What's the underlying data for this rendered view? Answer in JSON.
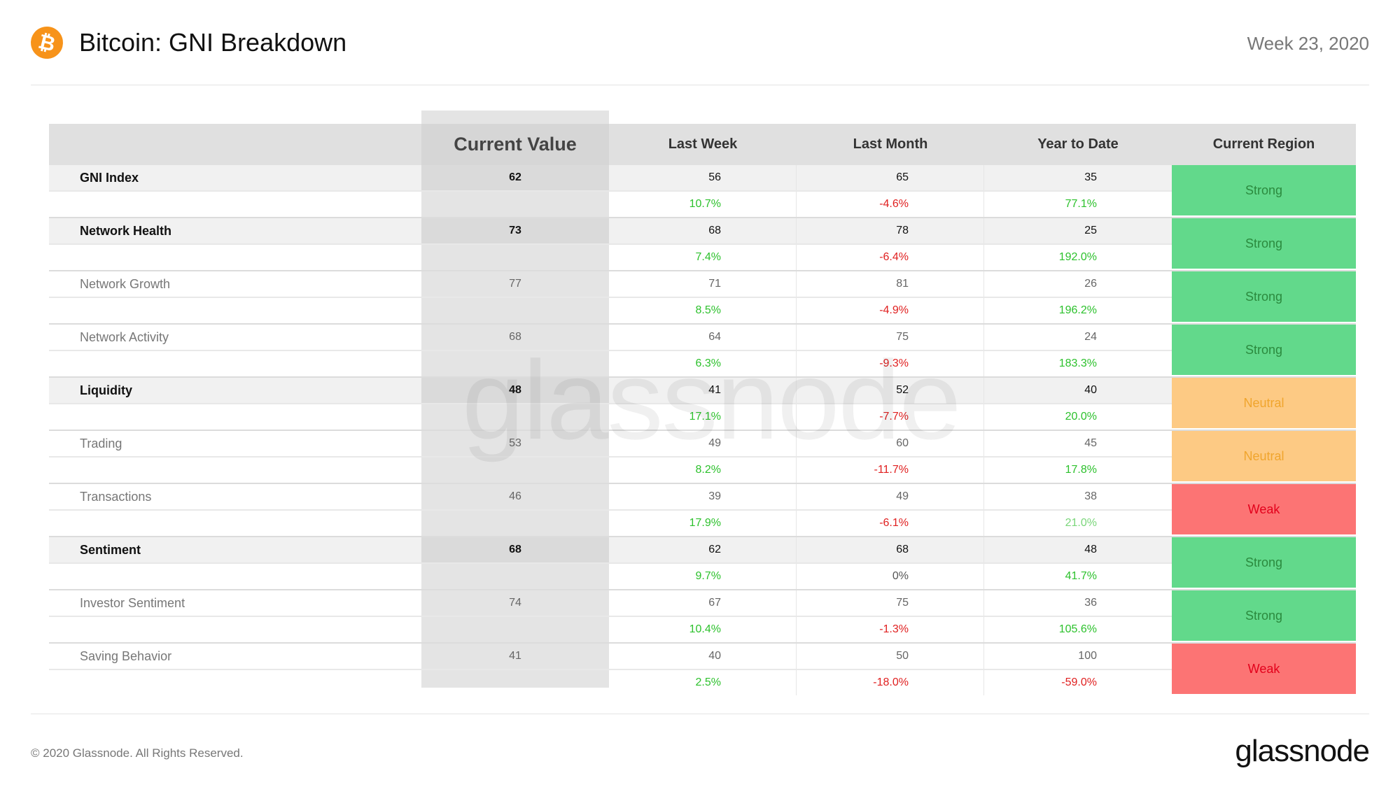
{
  "header": {
    "coin_symbol": "₿",
    "title": "Bitcoin: GNI Breakdown",
    "week": "Week 23, 2020"
  },
  "table": {
    "columns": [
      "",
      "Current Value",
      "Last Week",
      "Last Month",
      "Year to Date",
      "Current Region"
    ],
    "rows": [
      {
        "name": "GNI Index",
        "style": "bold",
        "current": "62",
        "last_week": "56",
        "last_week_change": "10.7%",
        "last_month": "65",
        "last_month_change": "-4.6%",
        "ytd": "35",
        "ytd_change": "77.1%",
        "region": "Strong"
      },
      {
        "name": "Network Health",
        "style": "bold",
        "current": "73",
        "last_week": "68",
        "last_week_change": "7.4%",
        "last_month": "78",
        "last_month_change": "-6.4%",
        "ytd": "25",
        "ytd_change": "192.0%",
        "region": "Strong"
      },
      {
        "name": "Network Growth",
        "style": "light",
        "current": "77",
        "last_week": "71",
        "last_week_change": "8.5%",
        "last_month": "81",
        "last_month_change": "-4.9%",
        "ytd": "26",
        "ytd_change": "196.2%",
        "region": "Strong"
      },
      {
        "name": "Network Activity",
        "style": "light",
        "current": "68",
        "last_week": "64",
        "last_week_change": "6.3%",
        "last_month": "75",
        "last_month_change": "-9.3%",
        "ytd": "24",
        "ytd_change": "183.3%",
        "region": "Strong"
      },
      {
        "name": "Liquidity",
        "style": "bold",
        "current": "48",
        "last_week": "41",
        "last_week_change": "17.1%",
        "last_month": "52",
        "last_month_change": "-7.7%",
        "ytd": "40",
        "ytd_change": "20.0%",
        "region": "Neutral"
      },
      {
        "name": "Trading",
        "style": "light",
        "current": "53",
        "last_week": "49",
        "last_week_change": "8.2%",
        "last_month": "60",
        "last_month_change": "-11.7%",
        "ytd": "45",
        "ytd_change": "17.8%",
        "region": "Neutral"
      },
      {
        "name": "Transactions",
        "style": "light",
        "current": "46",
        "last_week": "39",
        "last_week_change": "17.9%",
        "last_month": "49",
        "last_month_change": "-6.1%",
        "ytd": "38",
        "ytd_change": "21.0%",
        "region": "Weak"
      },
      {
        "name": "Sentiment",
        "style": "bold",
        "current": "68",
        "last_week": "62",
        "last_week_change": "9.7%",
        "last_month": "68",
        "last_month_change": "0%",
        "ytd": "48",
        "ytd_change": "41.7%",
        "region": "Strong"
      },
      {
        "name": "Investor Sentiment",
        "style": "light",
        "current": "74",
        "last_week": "67",
        "last_week_change": "10.4%",
        "last_month": "75",
        "last_month_change": "-1.3%",
        "ytd": "36",
        "ytd_change": "105.6%",
        "region": "Strong"
      },
      {
        "name": "Saving Behavior",
        "style": "light",
        "current": "41",
        "last_week": "40",
        "last_week_change": "2.5%",
        "last_month": "50",
        "last_month_change": "-18.0%",
        "ytd": "100",
        "ytd_change": "-59.0%",
        "region": "Weak"
      }
    ]
  },
  "colors": {
    "strong": "#62d98b",
    "neutral": "#fdca84",
    "weak": "#fc7474",
    "positive": "#2cc12c",
    "negative": "#e02020",
    "brand_coin": "#f7931a"
  },
  "watermark": "glassnode",
  "footer": {
    "copyright": "© 2020 Glassnode. All Rights Reserved.",
    "brand": "glassnode"
  }
}
